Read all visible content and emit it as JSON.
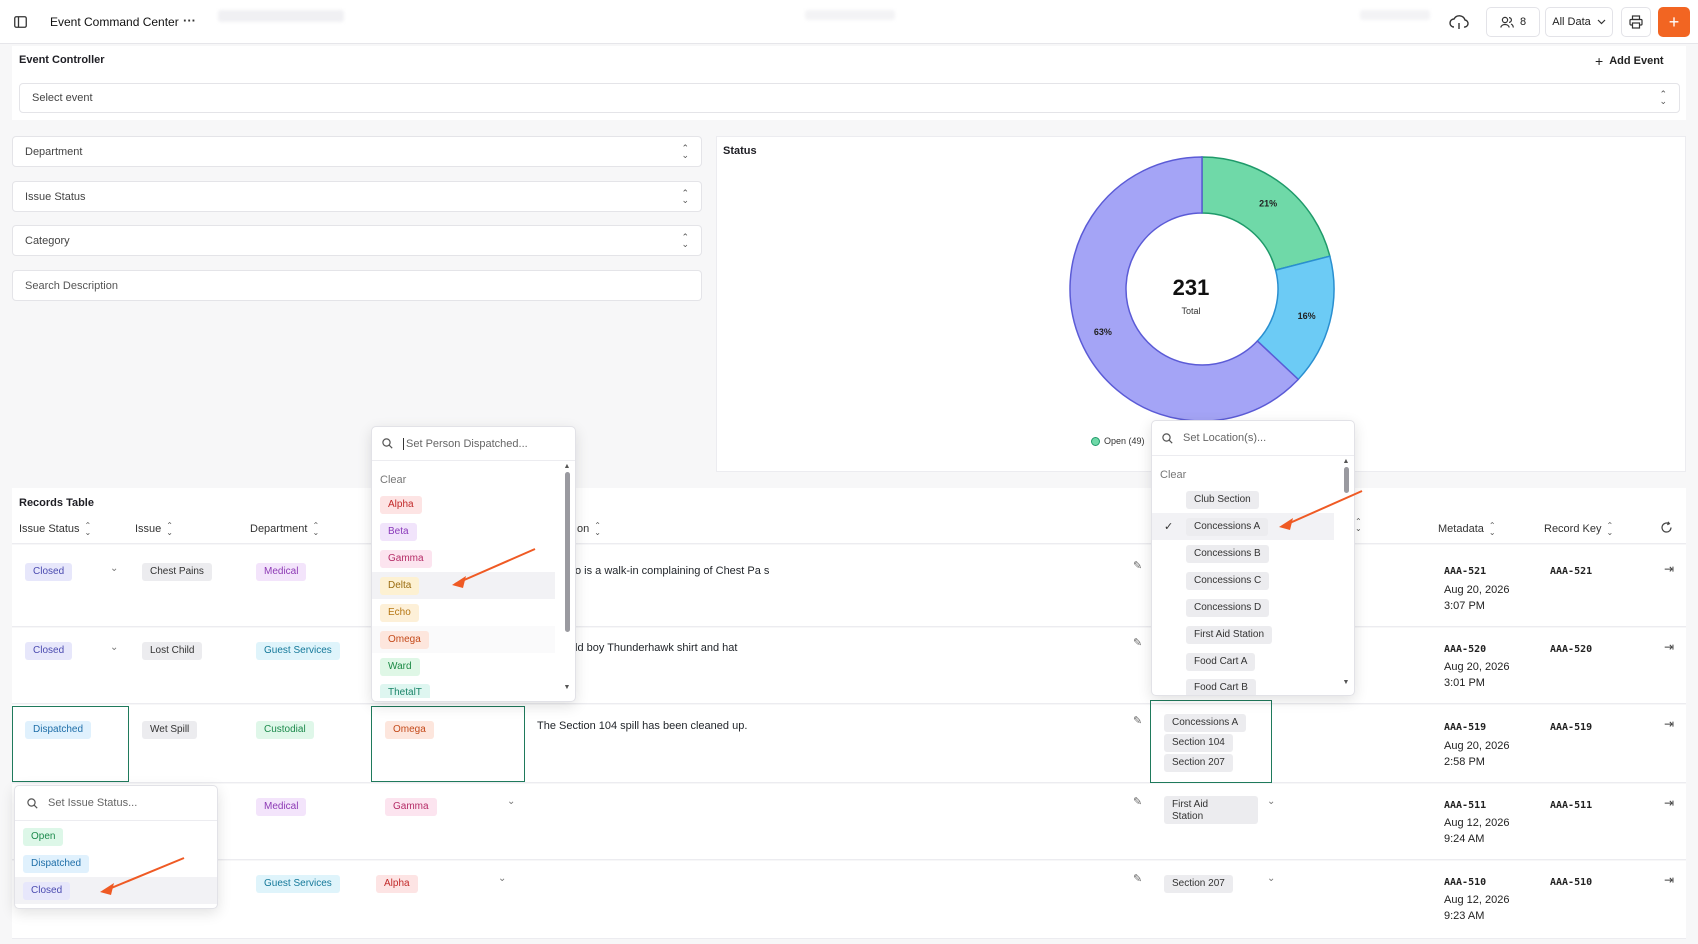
{
  "header": {
    "title": "Event Command Center",
    "more_label": "···",
    "users_count": "8",
    "data_filter": "All Data",
    "add_label": "+"
  },
  "controller": {
    "title": "Event Controller",
    "add_event": "Add Event",
    "select_event_placeholder": "Select event"
  },
  "filters": {
    "department": "Department",
    "issue_status": "Issue Status",
    "category": "Category",
    "search_placeholder": "Search Description"
  },
  "status_chart": {
    "title": "Status",
    "total_value": "231",
    "total_label": "Total",
    "legend_open": "Open (49)"
  },
  "chart_data": {
    "type": "pie",
    "title": "Status",
    "categories": [
      "Open",
      "Dispatched",
      "Closed"
    ],
    "values": [
      21,
      16,
      63
    ],
    "labels": [
      "21%",
      "16%",
      "63%"
    ],
    "colors": [
      "#6fd9a8",
      "#6ccbf5",
      "#a4a4f6"
    ],
    "stroke_colors": [
      "#1f9a6a",
      "#2a8fd0",
      "#5b5bd6"
    ],
    "center_total": 231
  },
  "table": {
    "title": "Records Table",
    "columns": {
      "issue_status": "Issue Status",
      "issue": "Issue",
      "department": "Department",
      "description_partial": "on",
      "metadata": "Metadata",
      "record_key": "Record Key"
    },
    "rows": [
      {
        "status": "Closed",
        "issue": "Chest Pains",
        "department": "Medical",
        "description": "o is a walk-in complaining of Chest Pa s",
        "meta_id": "AAA-521",
        "meta_date": "Aug 20, 2026",
        "meta_time": "3:07 PM",
        "key": "AAA-521"
      },
      {
        "status": "Closed",
        "issue": "Lost Child",
        "department": "Guest Services",
        "description": "ld boy Thunderhawk shirt and hat",
        "meta_id": "AAA-520",
        "meta_date": "Aug 20, 2026",
        "meta_time": "3:01 PM",
        "key": "AAA-520"
      },
      {
        "status": "Dispatched",
        "issue": "Wet Spill",
        "department": "Custodial",
        "person": "Omega",
        "description": "The Section 104 spill has been cleaned up.",
        "locations": [
          "Concessions A",
          "Section 104",
          "Section 207"
        ],
        "meta_id": "AAA-519",
        "meta_date": "Aug 20, 2026",
        "meta_time": "2:58 PM",
        "key": "AAA-519"
      },
      {
        "department": "Medical",
        "person": "Gamma",
        "location_line1": "First Aid",
        "location_line2": "Station",
        "meta_id": "AAA-511",
        "meta_date": "Aug 12, 2026",
        "meta_time": "9:24 AM",
        "key": "AAA-511"
      },
      {
        "department": "Guest Services",
        "person": "Alpha",
        "location": "Section 207",
        "meta_id": "AAA-510",
        "meta_date": "Aug 12, 2026",
        "meta_time": "9:23 AM",
        "key": "AAA-510"
      }
    ]
  },
  "person_dropdown": {
    "placeholder": "Set Person Dispatched...",
    "clear": "Clear",
    "options": [
      "Alpha",
      "Beta",
      "Gamma",
      "Delta",
      "Echo",
      "Omega",
      "Ward",
      "ThetalT"
    ]
  },
  "location_dropdown": {
    "placeholder": "Set Location(s)...",
    "clear": "Clear",
    "options": [
      "Club Section",
      "Concessions A",
      "Concessions B",
      "Concessions C",
      "Concessions D",
      "First Aid Station",
      "Food Cart A",
      "Food Cart B"
    ]
  },
  "status_dropdown": {
    "placeholder": "Set Issue Status...",
    "options": [
      "Open",
      "Dispatched",
      "Closed"
    ]
  }
}
